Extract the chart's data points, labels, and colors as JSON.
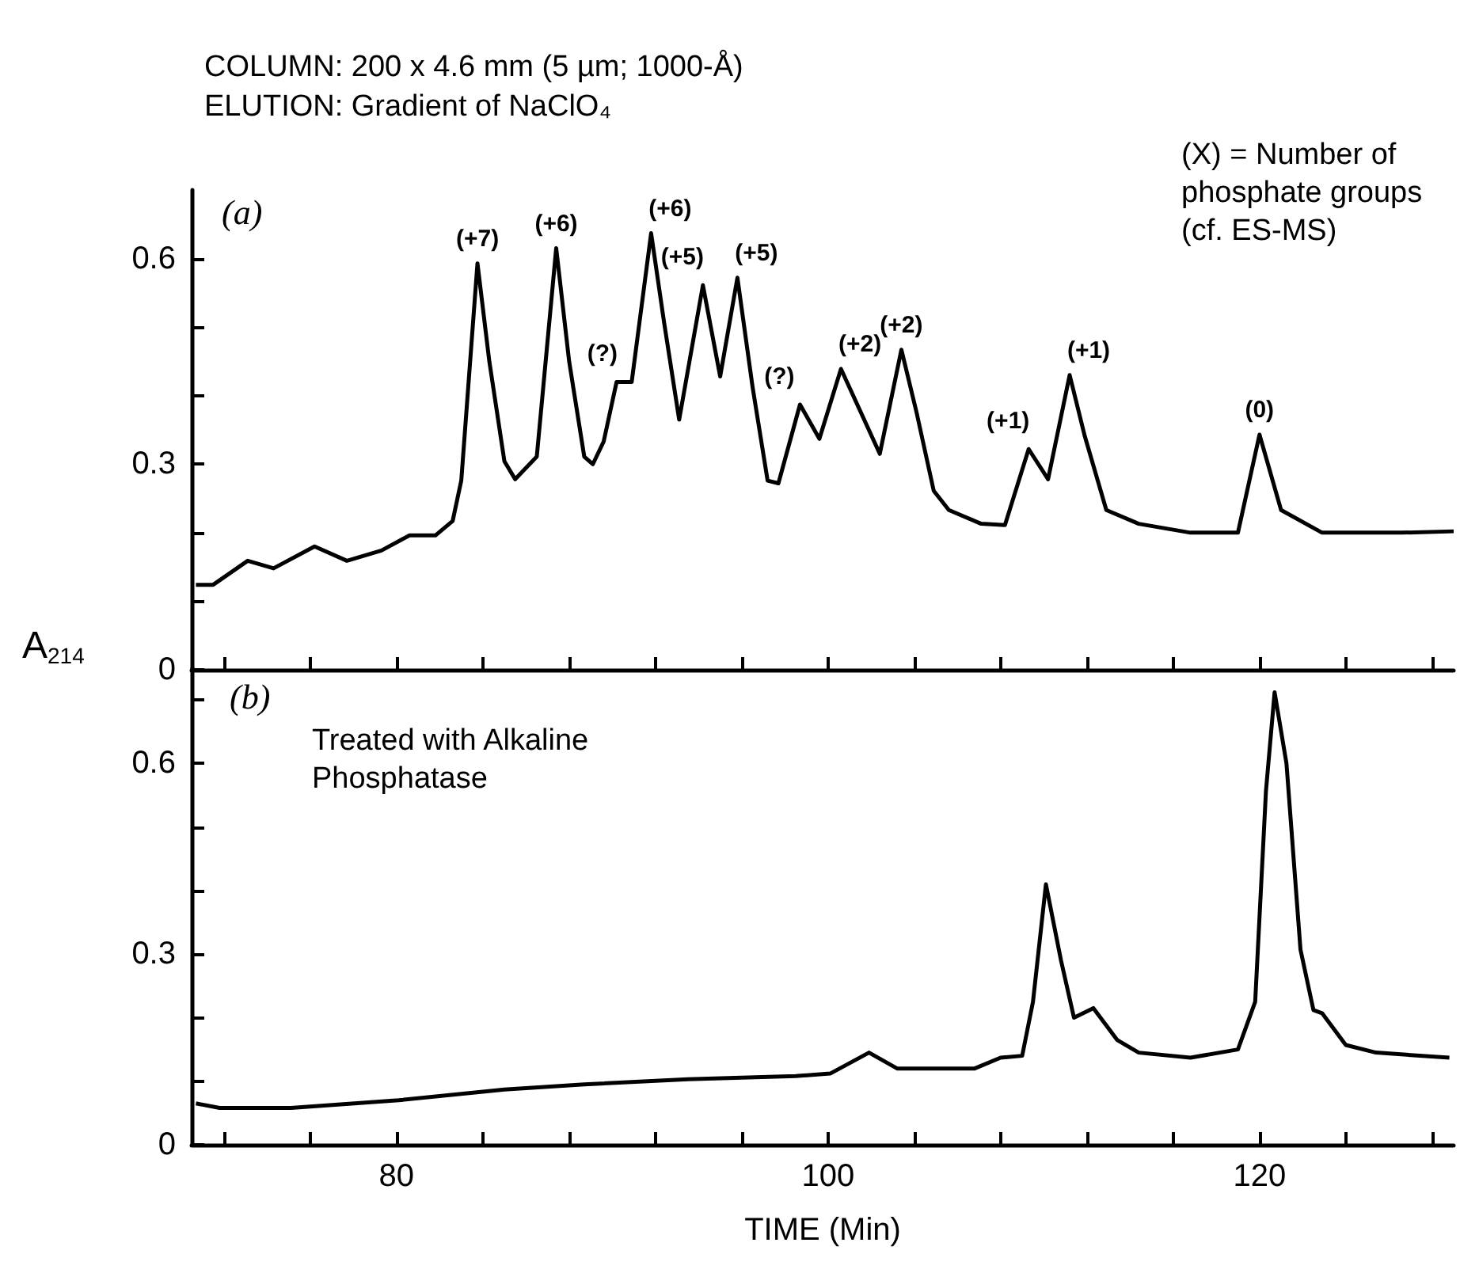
{
  "chart_data": [
    {
      "type": "line",
      "title": "COLUMN: 200 x 4.6 mm (5 µm; 1000-Å)",
      "subtitle": "ELUTION: Gradient of NaClO₄",
      "ylabel": "A$_{214}$",
      "color": "#000000",
      "x": [
        70.7,
        71.5,
        73.1,
        74.3,
        76.2,
        77.7,
        79.3,
        80.6,
        81.8,
        82.6,
        83.0,
        83.75,
        84.3,
        85.0,
        85.5,
        86.5,
        87.4,
        88.0,
        88.7,
        89.1,
        89.6,
        90.2,
        90.9,
        91.8,
        92.4,
        93.1,
        94.2,
        95.0,
        95.8,
        96.5,
        97.2,
        97.7,
        98.7,
        99.6,
        100.6,
        102.4,
        103.4,
        104.1,
        104.9,
        105.6,
        107.1,
        108.2,
        109.3,
        110.2,
        111.2,
        111.9,
        112.9,
        114.4,
        116.8,
        119.0,
        120.0,
        121.0,
        122.9,
        126.6,
        129.0
      ],
      "values": [
        0.124,
        0.124,
        0.159,
        0.148,
        0.18,
        0.159,
        0.174,
        0.196,
        0.196,
        0.217,
        0.276,
        0.593,
        0.45,
        0.304,
        0.278,
        0.311,
        0.615,
        0.45,
        0.311,
        0.3,
        0.333,
        0.42,
        0.42,
        0.637,
        0.507,
        0.365,
        0.561,
        0.428,
        0.572,
        0.413,
        0.276,
        0.272,
        0.387,
        0.337,
        0.439,
        0.315,
        0.467,
        0.376,
        0.261,
        0.233,
        0.213,
        0.211,
        0.322,
        0.278,
        0.43,
        0.341,
        0.233,
        0.213,
        0.2,
        0.2,
        0.343,
        0.233,
        0.2,
        0.2,
        0.202
      ],
      "xlim": [
        70.5,
        129
      ],
      "ylim": [
        0,
        0.7
      ],
      "xticks": [
        {
          "value": 72,
          "label": null
        },
        {
          "value": 76,
          "label": null
        },
        {
          "value": 80,
          "label": null
        },
        {
          "value": 84,
          "label": null
        },
        {
          "value": 88,
          "label": null
        },
        {
          "value": 92,
          "label": null
        },
        {
          "value": 96,
          "label": null
        },
        {
          "value": 100,
          "label": null
        },
        {
          "value": 104,
          "label": null
        },
        {
          "value": 108,
          "label": null
        },
        {
          "value": 112,
          "label": null
        },
        {
          "value": 116,
          "label": null
        },
        {
          "value": 120,
          "label": null
        },
        {
          "value": 124,
          "label": null
        },
        {
          "value": 128,
          "label": null
        }
      ],
      "yticks": [
        0,
        {
          "value": 0.1,
          "label": null
        },
        {
          "value": 0.2,
          "label": null
        },
        0.3,
        {
          "value": 0.4,
          "label": null
        },
        {
          "value": 0.5,
          "label": null
        },
        0.6
      ],
      "tick_labels": "y",
      "annotations": [
        "(a)",
        "(X) = Number of phosphate groups (cf. ES-MS)",
        {
          "text": "(+7)",
          "x": 83.75,
          "y": 0.593
        },
        {
          "text": "(+6)",
          "x": 87.4,
          "y": 0.615
        },
        {
          "text": "(?)",
          "x": 90.5,
          "y": 0.42
        },
        {
          "text": "(+6)",
          "x": 91.8,
          "y": 0.637
        },
        {
          "text": "(+5)",
          "x": 94.2,
          "y": 0.561
        },
        {
          "text": "(+5)",
          "x": 95.8,
          "y": 0.572
        },
        {
          "text": "(?)",
          "x": 98.7,
          "y": 0.387
        },
        {
          "text": "(+2)",
          "x": 100.6,
          "y": 0.439
        },
        {
          "text": "(+2)",
          "x": 103.4,
          "y": 0.467
        },
        {
          "text": "(+1)",
          "x": 109.3,
          "y": 0.322
        },
        {
          "text": "(+1)",
          "x": 111.2,
          "y": 0.43
        },
        {
          "text": "(0)",
          "x": 120.0,
          "y": 0.343
        }
      ]
    },
    {
      "type": "line",
      "xlabel": "TIME (Min)",
      "color": "#000000",
      "x": [
        70.7,
        71.8,
        75.1,
        80.1,
        85.0,
        88.7,
        93.5,
        98.5,
        100.1,
        101.9,
        103.2,
        106.8,
        108.0,
        109.0,
        109.5,
        110.1,
        110.8,
        111.4,
        112.3,
        113.4,
        114.4,
        116.8,
        119.0,
        119.8,
        120.3,
        120.7,
        121.25,
        121.9,
        122.5,
        122.9,
        124.0,
        125.4,
        128.8
      ],
      "values": [
        0.065,
        0.058,
        0.058,
        0.07,
        0.087,
        0.095,
        0.103,
        0.108,
        0.112,
        0.145,
        0.12,
        0.12,
        0.137,
        0.14,
        0.225,
        0.41,
        0.29,
        0.2,
        0.215,
        0.165,
        0.145,
        0.137,
        0.15,
        0.225,
        0.557,
        0.712,
        0.6,
        0.307,
        0.212,
        0.207,
        0.157,
        0.145,
        0.137
      ],
      "xlim": [
        70.5,
        129
      ],
      "ylim": [
        0,
        0.75
      ],
      "xticks": [
        {
          "value": 72,
          "label": null
        },
        {
          "value": 76,
          "label": null
        },
        {
          "value": 80,
          "label": "80"
        },
        {
          "value": 84,
          "label": null
        },
        {
          "value": 88,
          "label": null
        },
        {
          "value": 92,
          "label": null
        },
        {
          "value": 96,
          "label": null
        },
        {
          "value": 100,
          "label": "100"
        },
        {
          "value": 104,
          "label": null
        },
        {
          "value": 108,
          "label": null
        },
        {
          "value": 112,
          "label": null
        },
        {
          "value": 116,
          "label": null
        },
        {
          "value": 120,
          "label": "120"
        },
        {
          "value": 124,
          "label": null
        },
        {
          "value": 128,
          "label": null
        }
      ],
      "yticks": [
        0,
        {
          "value": 0.1,
          "label": null
        },
        {
          "value": 0.2,
          "label": null
        },
        0.3,
        {
          "value": 0.4,
          "label": null
        },
        {
          "value": 0.5,
          "label": null
        },
        0.6,
        {
          "value": 0.7,
          "label": null
        }
      ],
      "annotations": [
        "(b)",
        "Treated with Alkaline Phosphatase"
      ]
    }
  ]
}
